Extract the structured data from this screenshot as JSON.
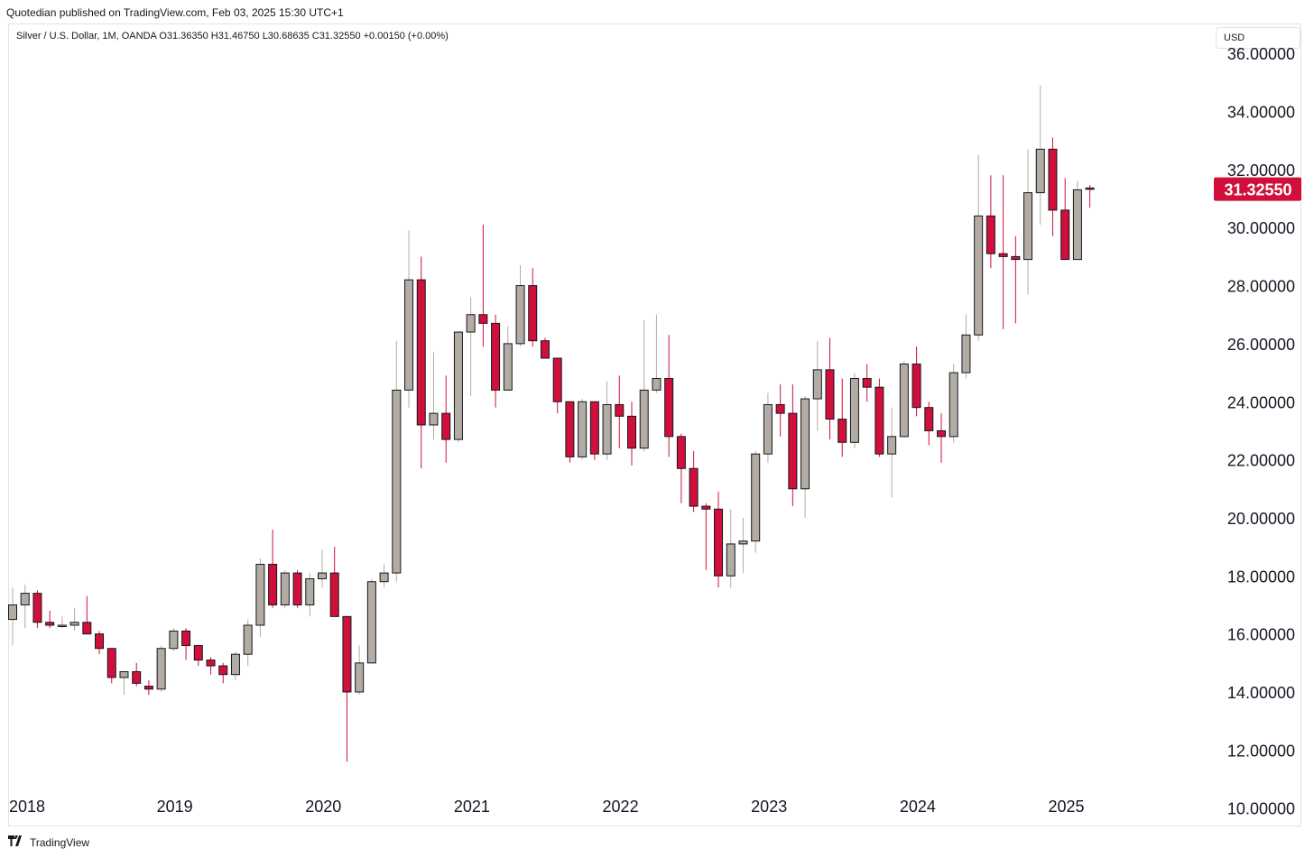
{
  "header": {
    "published": "Quotedian published on TradingView.com, Feb 03, 2025 15:30 UTC+1"
  },
  "legend": {
    "text": "Silver / U.S. Dollar, 1M, OANDA  O31.36350  H31.46750  L30.68635  C31.32550  +0.00150 (+0.00%)"
  },
  "currency_button": {
    "label": "USD"
  },
  "footer": {
    "logo_icon": "tradingview-logo-icon",
    "brand": "TradingView"
  },
  "colors": {
    "up": "#b2aca3",
    "down": "#d0103a",
    "border": "#131722",
    "price_badge": "#d0103a"
  },
  "chart_data": {
    "type": "candlestick",
    "title": "Silver / U.S. Dollar, 1M, OANDA",
    "ylim": [
      9.4,
      37.0
    ],
    "y_ticks": [
      "36.00000",
      "34.00000",
      "32.00000",
      "30.00000",
      "28.00000",
      "26.00000",
      "24.00000",
      "22.00000",
      "20.00000",
      "18.00000",
      "16.00000",
      "14.00000",
      "12.00000",
      "10.00000"
    ],
    "x_ticks": [
      "2018",
      "2019",
      "2020",
      "2021",
      "2022",
      "2023",
      "2024",
      "2025"
    ],
    "last_price": "31.32550",
    "ohlc": [
      [
        16.5,
        17.6,
        15.6,
        17.0
      ],
      [
        17.0,
        17.7,
        16.2,
        17.4
      ],
      [
        17.4,
        17.5,
        16.2,
        16.4
      ],
      [
        16.4,
        16.8,
        16.2,
        16.3
      ],
      [
        16.3,
        16.6,
        16.2,
        16.3
      ],
      [
        16.3,
        16.9,
        16.1,
        16.4
      ],
      [
        16.4,
        17.3,
        16.0,
        16.0
      ],
      [
        16.0,
        16.1,
        15.3,
        15.5
      ],
      [
        15.5,
        15.5,
        14.3,
        14.5
      ],
      [
        14.5,
        14.7,
        13.9,
        14.7
      ],
      [
        14.7,
        15.0,
        14.2,
        14.3
      ],
      [
        14.2,
        14.4,
        13.9,
        14.1
      ],
      [
        14.1,
        15.6,
        14.0,
        15.5
      ],
      [
        15.5,
        16.2,
        15.4,
        16.1
      ],
      [
        16.1,
        16.2,
        15.1,
        15.6
      ],
      [
        15.6,
        15.6,
        14.9,
        15.1
      ],
      [
        15.1,
        15.2,
        14.6,
        14.9
      ],
      [
        14.9,
        15.0,
        14.3,
        14.6
      ],
      [
        14.6,
        15.4,
        14.4,
        15.3
      ],
      [
        15.3,
        16.5,
        14.9,
        16.3
      ],
      [
        16.3,
        18.6,
        15.9,
        18.4
      ],
      [
        18.4,
        19.6,
        16.9,
        17.0
      ],
      [
        17.0,
        18.2,
        16.9,
        18.1
      ],
      [
        18.1,
        18.2,
        16.9,
        17.0
      ],
      [
        17.0,
        18.1,
        16.6,
        17.9
      ],
      [
        17.9,
        18.9,
        17.6,
        18.1
      ],
      [
        18.1,
        19.0,
        16.7,
        16.6
      ],
      [
        16.6,
        16.6,
        11.6,
        14.0
      ],
      [
        14.0,
        15.6,
        13.9,
        15.0
      ],
      [
        15.0,
        17.9,
        15.0,
        17.8
      ],
      [
        17.8,
        18.4,
        17.6,
        18.1
      ],
      [
        18.1,
        26.1,
        17.8,
        24.4
      ],
      [
        24.4,
        29.9,
        23.8,
        28.2
      ],
      [
        28.2,
        29.0,
        21.7,
        23.2
      ],
      [
        23.2,
        25.7,
        22.7,
        23.6
      ],
      [
        23.6,
        24.9,
        21.9,
        22.7
      ],
      [
        22.7,
        26.3,
        22.6,
        26.4
      ],
      [
        26.4,
        27.6,
        24.2,
        27.0
      ],
      [
        27.0,
        30.1,
        25.9,
        26.7
      ],
      [
        26.7,
        27.0,
        23.8,
        24.4
      ],
      [
        24.4,
        26.6,
        24.4,
        26.0
      ],
      [
        26.0,
        28.7,
        25.9,
        28.0
      ],
      [
        28.0,
        28.6,
        25.9,
        26.1
      ],
      [
        26.1,
        26.2,
        25.5,
        25.5
      ],
      [
        25.5,
        25.5,
        23.6,
        24.0
      ],
      [
        24.0,
        24.0,
        21.9,
        22.1
      ],
      [
        22.1,
        24.1,
        22.0,
        24.0
      ],
      [
        24.0,
        24.0,
        22.0,
        22.2
      ],
      [
        22.2,
        24.7,
        22.0,
        23.9
      ],
      [
        23.9,
        24.9,
        22.4,
        23.5
      ],
      [
        23.5,
        24.0,
        21.8,
        22.4
      ],
      [
        22.4,
        26.8,
        22.3,
        24.4
      ],
      [
        24.4,
        27.0,
        24.3,
        24.8
      ],
      [
        24.8,
        26.3,
        22.1,
        22.8
      ],
      [
        22.8,
        22.9,
        20.5,
        21.7
      ],
      [
        21.7,
        22.3,
        20.2,
        20.4
      ],
      [
        20.4,
        20.5,
        18.2,
        20.3
      ],
      [
        20.3,
        20.9,
        17.6,
        18.0
      ],
      [
        18.0,
        20.3,
        17.6,
        19.1
      ],
      [
        19.1,
        20.0,
        18.1,
        19.2
      ],
      [
        19.2,
        22.3,
        18.8,
        22.2
      ],
      [
        22.2,
        24.3,
        21.9,
        23.9
      ],
      [
        23.9,
        24.6,
        22.8,
        23.6
      ],
      [
        23.6,
        24.6,
        20.4,
        21.0
      ],
      [
        21.0,
        24.2,
        20.0,
        24.1
      ],
      [
        24.1,
        26.1,
        23.0,
        25.1
      ],
      [
        25.1,
        26.2,
        22.7,
        23.4
      ],
      [
        23.4,
        24.8,
        22.1,
        22.6
      ],
      [
        22.6,
        25.0,
        22.4,
        24.8
      ],
      [
        24.8,
        25.3,
        24.0,
        24.5
      ],
      [
        24.5,
        24.8,
        22.1,
        22.2
      ],
      [
        22.2,
        23.8,
        20.7,
        22.8
      ],
      [
        22.8,
        25.4,
        22.8,
        25.3
      ],
      [
        25.3,
        25.9,
        23.5,
        23.8
      ],
      [
        23.8,
        24.0,
        22.5,
        23.0
      ],
      [
        23.0,
        23.6,
        21.9,
        22.8
      ],
      [
        22.8,
        25.3,
        22.6,
        25.0
      ],
      [
        25.0,
        27.0,
        24.8,
        26.3
      ],
      [
        26.3,
        32.5,
        26.1,
        30.4
      ],
      [
        30.4,
        31.8,
        28.6,
        29.1
      ],
      [
        29.1,
        31.8,
        26.5,
        29.0
      ],
      [
        29.0,
        29.7,
        26.7,
        28.9
      ],
      [
        28.9,
        32.7,
        27.7,
        31.2
      ],
      [
        31.2,
        34.9,
        30.1,
        32.7
      ],
      [
        32.7,
        33.1,
        29.7,
        30.6
      ],
      [
        30.6,
        31.7,
        28.9,
        28.9
      ],
      [
        28.9,
        31.6,
        28.9,
        31.3
      ],
      [
        31.3635,
        31.4675,
        30.68635,
        31.3255
      ]
    ]
  }
}
